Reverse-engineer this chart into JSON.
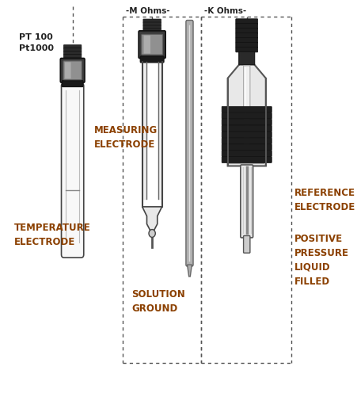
{
  "background_color": "#ffffff",
  "text_color": "#222222",
  "label_color": "#8B4000",
  "dashed_color": "#555555",
  "labels": {
    "temp_top1": "PT 100",
    "temp_top2": "Pt1000",
    "temp_bottom": "TEMPERATURE\nELECTRODE",
    "meas_left": "MEASURING\nELECTRODE",
    "sol_bottom": "SOLUTION\nGROUND",
    "ref_right": "REFERENCE\nELECTRODE",
    "pos_bottom": "POSITIVE\nPRESSURE\nLIQUID\nFILLED",
    "mohms": "-M Ohms-",
    "kohms": "-K Ohms-"
  },
  "figsize": [
    4.52,
    5.01
  ],
  "dpi": 100
}
